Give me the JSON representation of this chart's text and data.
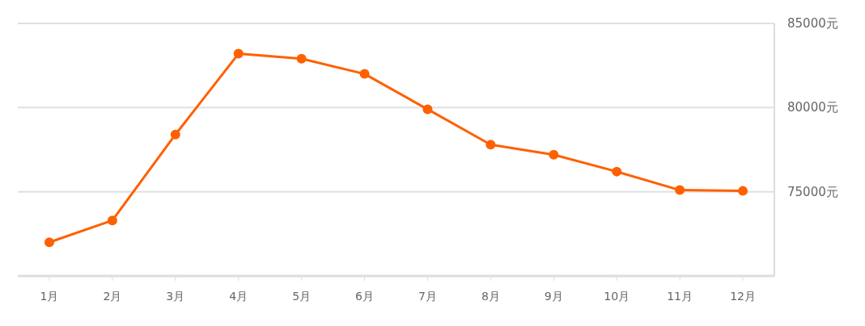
{
  "chart_data": {
    "type": "line",
    "categories": [
      "1月",
      "2月",
      "3月",
      "4月",
      "5月",
      "6月",
      "7月",
      "8月",
      "9月",
      "10月",
      "11月",
      "12月"
    ],
    "series": [
      {
        "color": "#ff6000",
        "values": [
          72000,
          73300,
          78400,
          83200,
          82900,
          82000,
          79900,
          77800,
          77200,
          76200,
          75100,
          75050
        ]
      }
    ],
    "ylim": [
      70000,
      85000
    ],
    "yticks": [
      {
        "value": 75000,
        "label": "75000元"
      },
      {
        "value": 80000,
        "label": "80000元"
      },
      {
        "value": 85000,
        "label": "85000元"
      }
    ],
    "grid": "y",
    "marker": "circle",
    "line_style": "solid"
  }
}
